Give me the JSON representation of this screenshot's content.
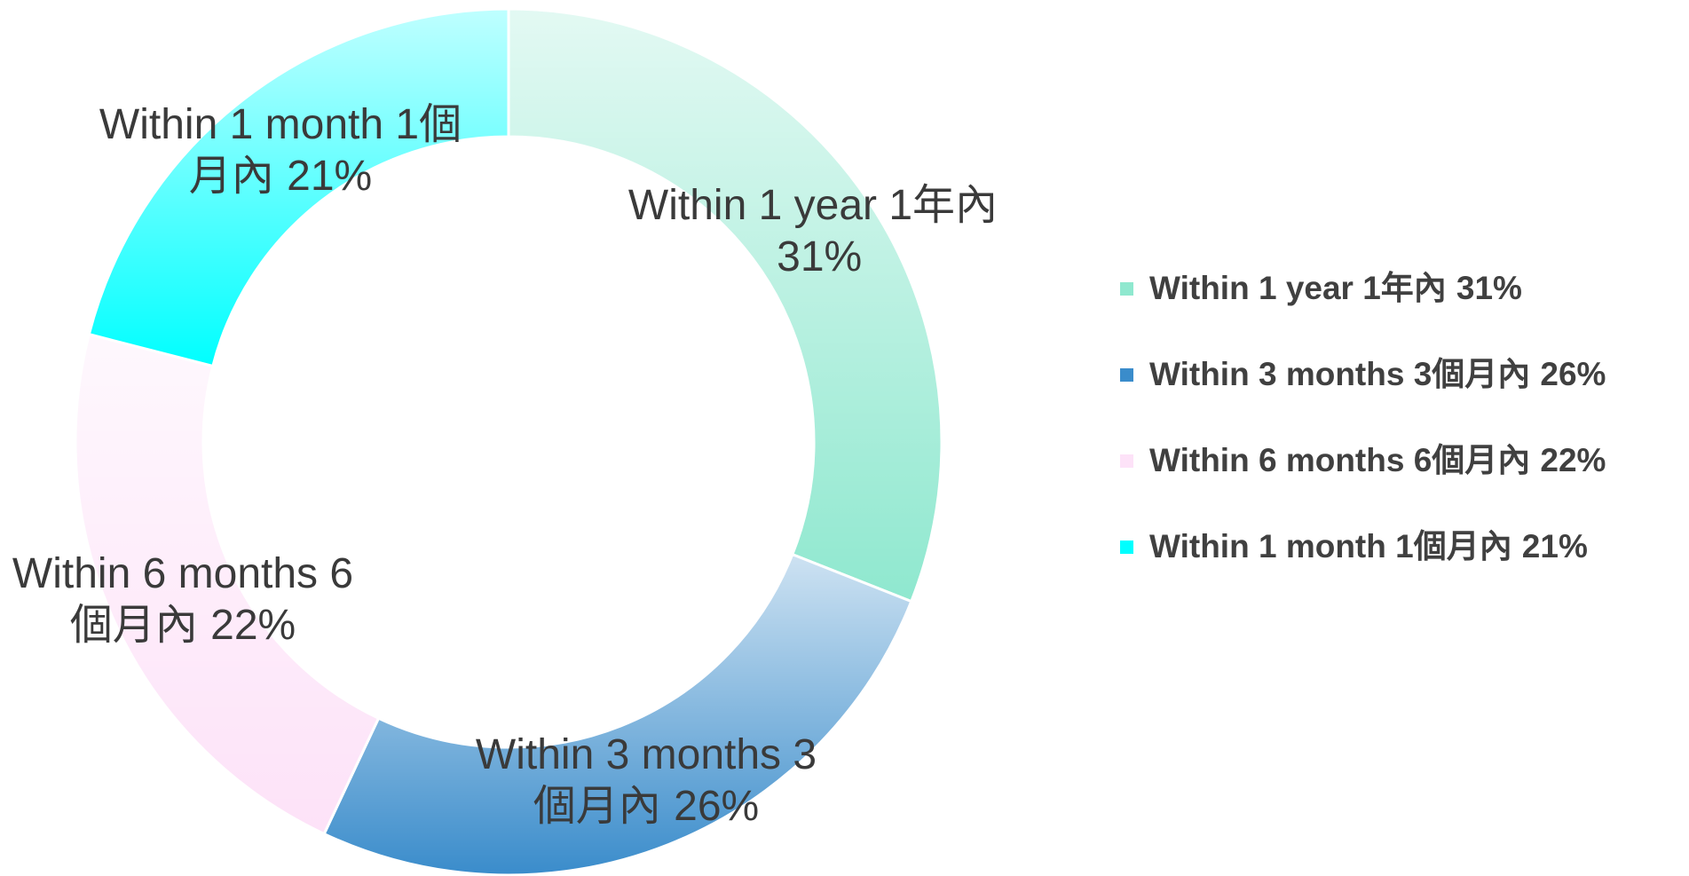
{
  "chart_data": {
    "type": "donut",
    "categories": [
      "Within 1 year 1年內",
      "Within 3 months 3個月內",
      "Within 6 months 6個月內",
      "Within 1 month 1個月內"
    ],
    "values": [
      31,
      26,
      22,
      21
    ],
    "value_labels": [
      "31%",
      "26%",
      "22%",
      "21%"
    ],
    "colors": [
      "#8fe8cf",
      "#3a8ccb",
      "#fde2f8",
      "#00ffff"
    ],
    "legend": "right"
  }
}
